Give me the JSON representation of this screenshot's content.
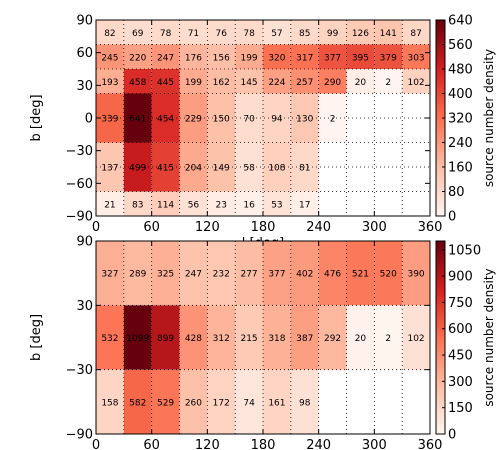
{
  "chart_data": [
    {
      "type": "heatmap",
      "xlabel": "l [deg]",
      "ylabel": "b [deg]",
      "xlim": [
        0,
        360
      ],
      "ylim": [
        -90,
        90
      ],
      "x_edges": [
        0,
        30,
        60,
        90,
        120,
        150,
        180,
        210,
        240,
        270,
        300,
        330,
        360
      ],
      "y_edges": [
        90,
        67.5,
        45,
        22.5,
        0,
        -22.5,
        -45,
        -67.5,
        -90
      ],
      "x_ticks": [
        0,
        60,
        120,
        180,
        240,
        300,
        360
      ],
      "y_ticks": [
        90,
        60,
        30,
        0,
        -30,
        -60,
        -90
      ],
      "values": [
        [
          82,
          69,
          78,
          71,
          76,
          78,
          57,
          85,
          99,
          126,
          141,
          87
        ],
        [
          245,
          220,
          247,
          176,
          156,
          199,
          320,
          317,
          377,
          395,
          379,
          303
        ],
        [
          193,
          458,
          445,
          199,
          162,
          145,
          224,
          257,
          290,
          20,
          2,
          102
        ],
        [
          339,
          641,
          454,
          229,
          150,
          70,
          94,
          130,
          2,
          null,
          null,
          null
        ],
        [
          137,
          499,
          415,
          204,
          149,
          58,
          108,
          81,
          null,
          null,
          null,
          null
        ],
        [
          21,
          83,
          114,
          56,
          23,
          16,
          53,
          17,
          null,
          null,
          null,
          null
        ]
      ],
      "row_bands": [
        [
          0,
          1
        ],
        [
          1,
          2
        ],
        [
          2,
          3
        ],
        [
          3,
          5
        ],
        [
          5,
          7
        ],
        [
          7,
          8
        ]
      ],
      "colorbar": {
        "label": "source number density",
        "min": 0,
        "max": 640,
        "ticks": [
          0,
          80,
          160,
          240,
          320,
          400,
          480,
          560,
          640
        ],
        "colors": [
          "#fff5f0",
          "#fdbea5",
          "#fb7050",
          "#d32020",
          "#67000d"
        ]
      },
      "grid": true
    },
    {
      "type": "heatmap",
      "xlabel": "l [deg]",
      "ylabel": "b [deg]",
      "xlim": [
        0,
        360
      ],
      "ylim": [
        -90,
        90
      ],
      "x_edges": [
        0,
        30,
        60,
        90,
        120,
        150,
        180,
        210,
        240,
        270,
        300,
        330,
        360
      ],
      "y_edges": [
        90,
        30,
        -30,
        -90
      ],
      "x_ticks": [
        0,
        60,
        120,
        180,
        240,
        300,
        360
      ],
      "y_ticks": [
        90,
        30,
        -30,
        -90
      ],
      "values": [
        [
          327,
          289,
          325,
          247,
          232,
          277,
          377,
          402,
          476,
          521,
          520,
          390
        ],
        [
          532,
          1099,
          899,
          428,
          312,
          215,
          318,
          387,
          292,
          20,
          2,
          102
        ],
        [
          158,
          582,
          529,
          260,
          172,
          74,
          161,
          98,
          null,
          null,
          null,
          null
        ]
      ],
      "row_bands": [
        [
          0,
          1
        ],
        [
          1,
          2
        ],
        [
          2,
          3
        ]
      ],
      "colorbar": {
        "label": "source number density",
        "min": 0,
        "max": 1100,
        "ticks": [
          0,
          150,
          300,
          450,
          600,
          750,
          900,
          1050
        ],
        "colors": [
          "#fff5f0",
          "#fdbea5",
          "#fb7050",
          "#d32020",
          "#67000d"
        ]
      },
      "grid": true
    }
  ]
}
